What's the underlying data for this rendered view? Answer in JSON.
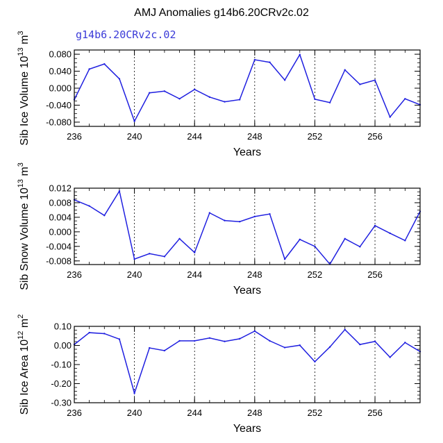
{
  "title": "AMJ Anomalies g14b6.20CRv2c.02",
  "case_label": "g14b6.20CRv2c.02",
  "chart_data": [
    {
      "type": "line",
      "ylabel_parts": [
        "Sib Ice Volume 10",
        "13",
        " m",
        "3"
      ],
      "xlabel": "Years",
      "x": [
        236,
        237,
        238,
        239,
        240,
        241,
        242,
        243,
        244,
        245,
        246,
        247,
        248,
        249,
        250,
        251,
        252,
        253,
        254,
        255,
        256,
        257,
        258,
        259
      ],
      "values": [
        -0.027,
        0.045,
        0.057,
        0.022,
        -0.078,
        -0.011,
        -0.007,
        -0.025,
        -0.003,
        -0.021,
        -0.032,
        -0.027,
        0.067,
        0.061,
        0.019,
        0.079,
        -0.026,
        -0.034,
        0.043,
        0.009,
        0.019,
        -0.068,
        -0.025,
        -0.039
      ],
      "xlim": [
        236,
        259
      ],
      "ylim": [
        -0.09,
        0.09
      ],
      "xticks": [
        236,
        240,
        244,
        248,
        252,
        256
      ],
      "xtick_labels": [
        "236",
        "240",
        "244",
        "248",
        "252",
        "256"
      ],
      "yticks": [
        -0.08,
        -0.04,
        0.0,
        0.04,
        0.08
      ],
      "ytick_labels": [
        "-0.080",
        "-0.040",
        "0.000",
        "0.040",
        "0.080"
      ],
      "yminor_step": 0.01,
      "xminor_step": 1,
      "grid": "vertical dashed at major x ticks",
      "line_color": "#1f1fe0"
    },
    {
      "type": "line",
      "ylabel_parts": [
        "Sib Snow Volume 10",
        "13",
        " m",
        "3"
      ],
      "xlabel": "Years",
      "x": [
        236,
        237,
        238,
        239,
        240,
        241,
        242,
        243,
        244,
        245,
        246,
        247,
        248,
        249,
        250,
        251,
        252,
        253,
        254,
        255,
        256,
        257,
        258,
        259
      ],
      "values": [
        0.0088,
        0.0071,
        0.0045,
        0.0112,
        -0.0075,
        -0.006,
        -0.0068,
        -0.0019,
        -0.0057,
        0.0052,
        0.0031,
        0.0028,
        0.0042,
        0.0049,
        -0.0075,
        -0.0021,
        -0.004,
        -0.0089,
        -0.0019,
        -0.0041,
        0.0017,
        -0.0004,
        -0.0024,
        0.0056
      ],
      "xlim": [
        236,
        259
      ],
      "ylim": [
        -0.009,
        0.012
      ],
      "xticks": [
        236,
        240,
        244,
        248,
        252,
        256
      ],
      "xtick_labels": [
        "236",
        "240",
        "244",
        "248",
        "252",
        "256"
      ],
      "yticks": [
        -0.008,
        -0.004,
        0.0,
        0.004,
        0.008,
        0.012
      ],
      "ytick_labels": [
        "-0.008",
        "-0.004",
        "0.000",
        "0.004",
        "0.008",
        "0.012"
      ],
      "yminor_step": 0.001,
      "xminor_step": 1,
      "grid": "vertical dashed at major x ticks",
      "line_color": "#1f1fe0"
    },
    {
      "type": "line",
      "ylabel_parts": [
        "Sib Ice Area 10",
        "12",
        " m",
        "2"
      ],
      "xlabel": "Years",
      "x": [
        236,
        237,
        238,
        239,
        240,
        241,
        242,
        243,
        244,
        245,
        246,
        247,
        248,
        249,
        250,
        251,
        252,
        253,
        254,
        255,
        256,
        257,
        258,
        259
      ],
      "values": [
        0.005,
        0.067,
        0.062,
        0.033,
        -0.25,
        -0.013,
        -0.027,
        0.024,
        0.024,
        0.039,
        0.021,
        0.035,
        0.075,
        0.024,
        -0.011,
        0.001,
        -0.085,
        -0.008,
        0.083,
        0.005,
        0.021,
        -0.062,
        0.015,
        -0.032
      ],
      "xlim": [
        236,
        259
      ],
      "ylim": [
        -0.3,
        0.1
      ],
      "xticks": [
        236,
        240,
        244,
        248,
        252,
        256
      ],
      "xtick_labels": [
        "236",
        "240",
        "244",
        "248",
        "252",
        "256"
      ],
      "yticks": [
        -0.3,
        -0.2,
        -0.1,
        0.0,
        0.1
      ],
      "ytick_labels": [
        "-0.30",
        "-0.20",
        "-0.10",
        "0.00",
        "0.10"
      ],
      "yminor_step": 0.02,
      "xminor_step": 1,
      "grid": "vertical dashed at major x ticks",
      "line_color": "#1f1fe0"
    }
  ]
}
